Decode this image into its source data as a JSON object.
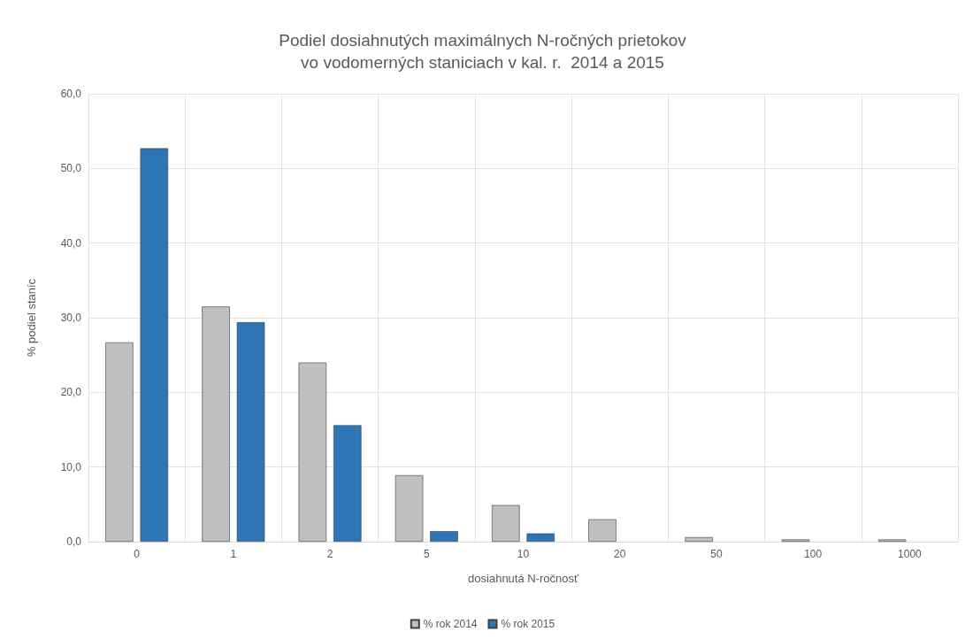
{
  "chart_data": {
    "type": "bar",
    "title": "Podiel dosiahnutých maximálnych N-ročných prietokov\nvo vodomerných staniciach v kal. r.  2014 a 2015",
    "xlabel": "dosiahnutá N-ročnosť",
    "ylabel": "% podiel staníc",
    "categories": [
      "0",
      "1",
      "2",
      "5",
      "10",
      "20",
      "50",
      "100",
      "1000"
    ],
    "series": [
      {
        "name": "% rok 2014",
        "color": "#bfbfbf",
        "values": [
          26.7,
          31.5,
          24.0,
          8.9,
          4.9,
          3.0,
          0.6,
          0.3,
          0.3
        ]
      },
      {
        "name": "% rok 2015",
        "color": "#2e75b6",
        "values": [
          52.7,
          29.4,
          15.6,
          1.4,
          1.1,
          null,
          null,
          null,
          null
        ]
      }
    ],
    "ylim": [
      0,
      60
    ],
    "yticks": [
      {
        "value": 0,
        "label": "0,0"
      },
      {
        "value": 10,
        "label": "10,0"
      },
      {
        "value": 20,
        "label": "20,0"
      },
      {
        "value": 30,
        "label": "30,0"
      },
      {
        "value": 40,
        "label": "40,0"
      },
      {
        "value": 50,
        "label": "50,0"
      },
      {
        "value": 60,
        "label": "60,0"
      }
    ],
    "grid": true,
    "legend": "bottom"
  }
}
